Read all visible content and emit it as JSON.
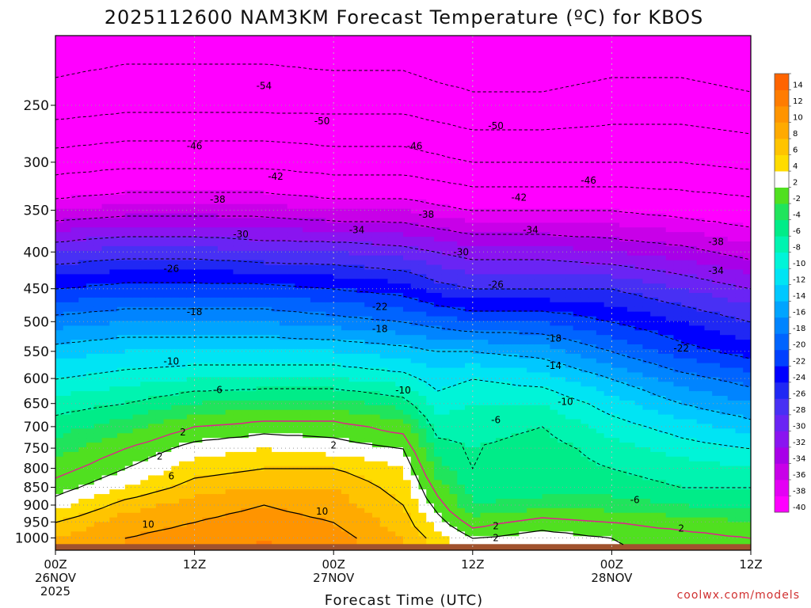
{
  "chart_data": {
    "type": "heatmap",
    "title": "2025112600 NAM3KM Forecast Temperature (ºC) for KBOS",
    "xlabel": "Forecast Time (UTC)",
    "ylabel": "",
    "y_axis": {
      "log_scale": true,
      "inverted": true,
      "range": [
        1040,
        200
      ],
      "ticks": [
        250,
        300,
        350,
        400,
        450,
        500,
        550,
        600,
        650,
        700,
        750,
        800,
        850,
        900,
        950,
        1000
      ]
    },
    "x_axis": {
      "range_hours": [
        0,
        60
      ],
      "ticks": [
        {
          "hour": 0,
          "line1": "00Z",
          "line2": "26NOV",
          "line3": "2025"
        },
        {
          "hour": 12,
          "line1": "12Z",
          "line2": "",
          "line3": ""
        },
        {
          "hour": 24,
          "line1": "00Z",
          "line2": "27NOV",
          "line3": ""
        },
        {
          "hour": 36,
          "line1": "12Z",
          "line2": "",
          "line3": ""
        },
        {
          "hour": 48,
          "line1": "00Z",
          "line2": "28NOV",
          "line3": ""
        },
        {
          "hour": 60,
          "line1": "12Z",
          "line2": "",
          "line3": ""
        }
      ]
    },
    "grid": true,
    "legend": "right",
    "colorbar": {
      "colors": [
        "#ff00ff",
        "#e400f4",
        "#c800e8",
        "#a800e8",
        "#8a14f0",
        "#6a24f4",
        "#4830f4",
        "#2028f4",
        "#0000ff",
        "#0040ff",
        "#0064ff",
        "#0084ff",
        "#00a4ff",
        "#00c8ff",
        "#00e4f4",
        "#00f4d8",
        "#00f4b0",
        "#00ec88",
        "#20e45c",
        "#50e020",
        "#ffffff",
        "#ffdc00",
        "#ffc400",
        "#ffaa00",
        "#ff9400",
        "#ff7c00",
        "#ff6400"
      ],
      "labels": [
        "-40",
        "-38",
        "-36",
        "-34",
        "-32",
        "-30",
        "-28",
        "-26",
        "-24",
        "-22",
        "-20",
        "-18",
        "-16",
        "-14",
        "-12",
        "-10",
        "-8",
        "-6",
        "-4",
        "-2",
        "2",
        "4",
        "6",
        "8",
        "10",
        "12",
        "14"
      ]
    },
    "temperature_profiles": [
      {
        "hour": 0,
        "p": [
          1000,
          950,
          900,
          850,
          800,
          750,
          700,
          650,
          600,
          550,
          500,
          450,
          400,
          350,
          300,
          250,
          200
        ],
        "t": [
          8,
          6,
          3,
          1,
          -1,
          -3,
          -5,
          -7,
          -10,
          -13,
          -17,
          -22,
          -28,
          -36,
          -44,
          -52,
          -57
        ]
      },
      {
        "hour": 6,
        "p": [
          1000,
          950,
          900,
          850,
          800,
          750,
          700,
          650,
          600,
          550,
          500,
          450,
          400,
          350,
          300,
          250,
          200
        ],
        "t": [
          10,
          9,
          7,
          4,
          2,
          0,
          -3,
          -6,
          -9,
          -12,
          -16,
          -21,
          -27,
          -35,
          -43,
          -51,
          -56
        ]
      },
      {
        "hour": 12,
        "p": [
          1000,
          950,
          900,
          850,
          800,
          750,
          700,
          650,
          600,
          550,
          500,
          450,
          400,
          350,
          300,
          250,
          200
        ],
        "t": [
          11,
          10,
          9,
          7,
          5,
          3,
          0,
          -4,
          -8,
          -12,
          -16,
          -21,
          -27,
          -35,
          -43,
          -51,
          -56
        ]
      },
      {
        "hour": 18,
        "p": [
          1000,
          950,
          900,
          850,
          800,
          750,
          700,
          650,
          600,
          550,
          500,
          450,
          400,
          350,
          300,
          250,
          200
        ],
        "t": [
          12,
          11,
          10,
          8,
          6,
          4,
          1,
          -3,
          -8,
          -12,
          -16,
          -21,
          -28,
          -35,
          -43,
          -51,
          -56
        ]
      },
      {
        "hour": 24,
        "p": [
          1000,
          950,
          900,
          850,
          800,
          750,
          700,
          650,
          600,
          550,
          500,
          450,
          400,
          350,
          300,
          250,
          200
        ],
        "t": [
          11,
          10,
          9,
          8,
          6,
          3,
          1,
          -3,
          -8,
          -12,
          -17,
          -22,
          -28,
          -36,
          -44,
          -51,
          -57
        ]
      },
      {
        "hour": 30,
        "p": [
          1000,
          950,
          900,
          850,
          800,
          750,
          700,
          650,
          600,
          550,
          500,
          450,
          400,
          350,
          300,
          250,
          200
        ],
        "t": [
          8,
          7,
          6,
          5,
          4,
          2,
          -1,
          -5,
          -9,
          -13,
          -18,
          -23,
          -29,
          -36,
          -44,
          -51,
          -57
        ]
      },
      {
        "hour": 33,
        "p": [
          1000,
          950,
          900,
          850,
          800,
          750,
          700,
          650,
          600,
          550,
          500,
          450,
          400,
          350,
          300,
          250,
          200
        ],
        "t": [
          5,
          3,
          1,
          -1,
          -3,
          -5,
          -7,
          -9,
          -11,
          -14,
          -19,
          -25,
          -30,
          -37,
          -45,
          -52,
          -58
        ]
      },
      {
        "hour": 36,
        "p": [
          1000,
          950,
          900,
          850,
          800,
          750,
          700,
          650,
          600,
          550,
          500,
          450,
          400,
          350,
          300,
          250,
          200
        ],
        "t": [
          2,
          -1,
          -4,
          -5,
          -6,
          -6,
          -7,
          -8,
          -10,
          -14,
          -20,
          -26,
          -31,
          -38,
          -46,
          -53,
          -58
        ]
      },
      {
        "hour": 42,
        "p": [
          1000,
          950,
          900,
          850,
          800,
          750,
          700,
          650,
          600,
          550,
          500,
          450,
          400,
          350,
          300,
          250,
          200
        ],
        "t": [
          3,
          1,
          -3,
          -5,
          -5,
          -5,
          -6,
          -8,
          -11,
          -15,
          -20,
          -26,
          -31,
          -38,
          -46,
          -53,
          -58
        ]
      },
      {
        "hour": 48,
        "p": [
          1000,
          950,
          900,
          850,
          800,
          750,
          700,
          650,
          600,
          550,
          500,
          450,
          400,
          350,
          300,
          250,
          200
        ],
        "t": [
          2,
          0,
          -3,
          -5,
          -6,
          -7,
          -9,
          -11,
          -14,
          -18,
          -22,
          -26,
          -32,
          -38,
          -46,
          -52,
          -57
        ]
      },
      {
        "hour": 54,
        "p": [
          1000,
          950,
          900,
          850,
          800,
          750,
          700,
          650,
          600,
          550,
          500,
          450,
          400,
          350,
          300,
          250,
          200
        ],
        "t": [
          1,
          -1,
          -4,
          -6,
          -7,
          -9,
          -11,
          -14,
          -17,
          -21,
          -24,
          -28,
          -33,
          -39,
          -46,
          -52,
          -57
        ]
      },
      {
        "hour": 60,
        "p": [
          1000,
          950,
          900,
          850,
          800,
          750,
          700,
          650,
          600,
          550,
          500,
          450,
          400,
          350,
          300,
          250,
          200
        ],
        "t": [
          0,
          -2,
          -5,
          -6,
          -8,
          -10,
          -13,
          -16,
          -19,
          -23,
          -26,
          -30,
          -35,
          -40,
          -47,
          -53,
          -58
        ]
      }
    ],
    "contour_labels": [
      {
        "text": "-54",
        "hour": 18,
        "p": 235
      },
      {
        "text": "-50",
        "hour": 23,
        "p": 263
      },
      {
        "text": "-50",
        "hour": 38,
        "p": 267
      },
      {
        "text": "-46",
        "hour": 12,
        "p": 285
      },
      {
        "text": "-46",
        "hour": 31,
        "p": 285
      },
      {
        "text": "-46",
        "hour": 46,
        "p": 318
      },
      {
        "text": "-42",
        "hour": 19,
        "p": 314
      },
      {
        "text": "-42",
        "hour": 40,
        "p": 336
      },
      {
        "text": "-38",
        "hour": 14,
        "p": 338
      },
      {
        "text": "-38",
        "hour": 32,
        "p": 355
      },
      {
        "text": "-38",
        "hour": 57,
        "p": 387
      },
      {
        "text": "-34",
        "hour": 26,
        "p": 373
      },
      {
        "text": "-34",
        "hour": 41,
        "p": 373
      },
      {
        "text": "-34",
        "hour": 57,
        "p": 425
      },
      {
        "text": "-30",
        "hour": 16,
        "p": 378
      },
      {
        "text": "-30",
        "hour": 35,
        "p": 400
      },
      {
        "text": "-26",
        "hour": 10,
        "p": 422
      },
      {
        "text": "-26",
        "hour": 38,
        "p": 444
      },
      {
        "text": "-22",
        "hour": 28,
        "p": 477
      },
      {
        "text": "-22",
        "hour": 54,
        "p": 545
      },
      {
        "text": "-18",
        "hour": 12,
        "p": 485
      },
      {
        "text": "-18",
        "hour": 28,
        "p": 512
      },
      {
        "text": "-18",
        "hour": 43,
        "p": 528
      },
      {
        "text": "-14",
        "hour": 43,
        "p": 576
      },
      {
        "text": "-10",
        "hour": 10,
        "p": 568
      },
      {
        "text": "-10",
        "hour": 30,
        "p": 623
      },
      {
        "text": "-10",
        "hour": 44,
        "p": 646
      },
      {
        "text": "-6",
        "hour": 14,
        "p": 622
      },
      {
        "text": "-6",
        "hour": 38,
        "p": 685
      },
      {
        "text": "-6",
        "hour": 50,
        "p": 885
      },
      {
        "text": "2",
        "hour": 11,
        "p": 713
      },
      {
        "text": "2",
        "hour": 9,
        "p": 770
      },
      {
        "text": "2",
        "hour": 24,
        "p": 743
      },
      {
        "text": "2",
        "hour": 38,
        "p": 962
      },
      {
        "text": "2",
        "hour": 38,
        "p": 1000
      },
      {
        "text": "2",
        "hour": 54,
        "p": 970
      },
      {
        "text": "6",
        "hour": 10,
        "p": 820
      },
      {
        "text": "10",
        "hour": 23,
        "p": 918
      },
      {
        "text": "10",
        "hour": 8,
        "p": 958
      }
    ],
    "ground_layer_p": 1020
  },
  "credit": "coolwx.com/models"
}
